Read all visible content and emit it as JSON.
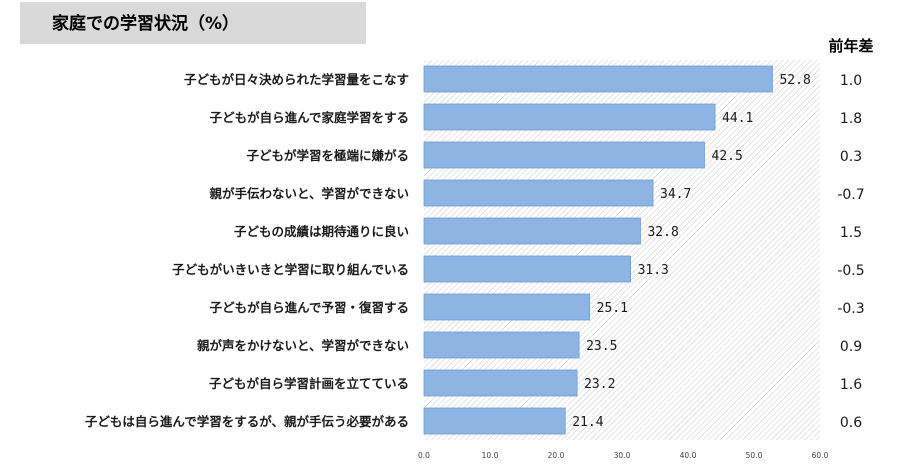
{
  "title": "家庭での学習状況（%）",
  "prev_header": "前年差",
  "colors": {
    "bar": "#8eb4e3",
    "bar_border": "#6f9cd2",
    "title_bg": "#d9d9d9",
    "hatch": "#c8c8c8"
  },
  "chart_data": {
    "type": "bar",
    "orientation": "horizontal",
    "categories": [
      "子どもが日々決められた学習量をこなす",
      "子どもが自ら進んで家庭学習をする",
      "子どもが学習を極端に嫌がる",
      "親が手伝わないと、学習ができない",
      "子どもの成績は期待通りに良い",
      "子どもがいきいきと学習に取り組んでいる",
      "子どもが自ら進んで予習・復習する",
      "親が声をかけないと、学習ができない",
      "子どもが自ら学習計画を立てている",
      "子どもは自ら進んで学習をするが、親が手伝う必要がある"
    ],
    "values": [
      52.8,
      44.1,
      42.5,
      34.7,
      32.8,
      31.3,
      25.1,
      23.5,
      23.2,
      21.4
    ],
    "value_labels": [
      "52.8",
      "44.1",
      "42.5",
      "34.7",
      "32.8",
      "31.3",
      "25.1",
      "23.5",
      "23.2",
      "21.4"
    ],
    "prev_diff": [
      "1.0",
      "1.8",
      "0.3",
      "-0.7",
      "1.5",
      "-0.5",
      "-0.3",
      "0.9",
      "1.6",
      "0.6"
    ],
    "xlim": [
      0,
      60
    ],
    "xticks": [
      "0.0",
      "10.0",
      "20.0",
      "30.0",
      "40.0",
      "50.0",
      "60.0"
    ],
    "grid": false,
    "legend": "none"
  }
}
